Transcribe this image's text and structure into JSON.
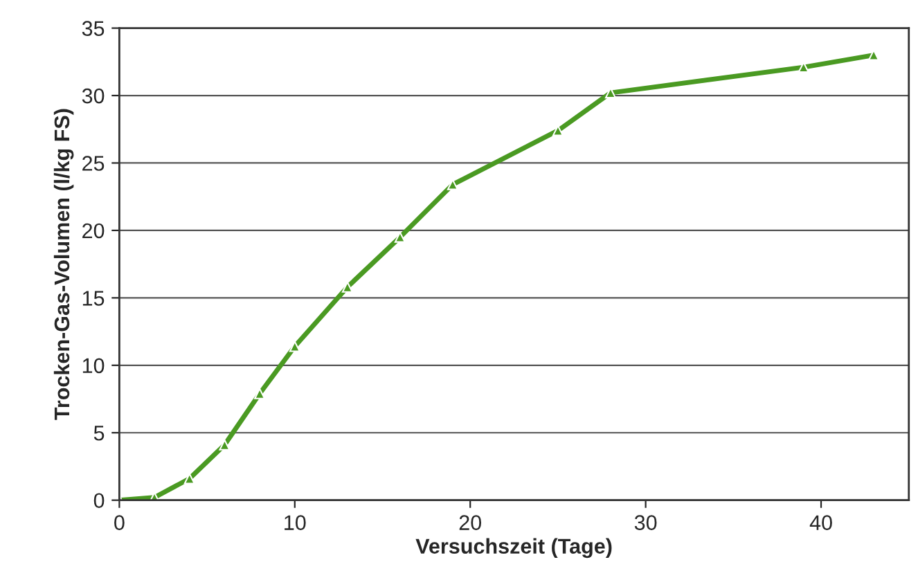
{
  "chart_data": {
    "type": "line",
    "xlabel": "Versuchszeit (Tage)",
    "ylabel": "Trocken-Gas-Volumen (l/kg FS)",
    "x": [
      0,
      2,
      4,
      6,
      8,
      10,
      13,
      16,
      19,
      25,
      28,
      39,
      43
    ],
    "series": [
      {
        "color": "#4a9a22",
        "values": [
          0,
          0.2,
          1.6,
          4.1,
          7.9,
          11.4,
          15.8,
          19.5,
          23.4,
          27.4,
          30.2,
          32.1,
          33.0
        ]
      }
    ],
    "xlim": [
      0,
      45
    ],
    "xticks": [
      0,
      10,
      20,
      30,
      40
    ],
    "ylim": [
      0,
      35
    ],
    "yticks": [
      0,
      5,
      10,
      15,
      20,
      25,
      30,
      35
    ],
    "grid": "y",
    "marker": "triangle",
    "line_style": "solid"
  }
}
